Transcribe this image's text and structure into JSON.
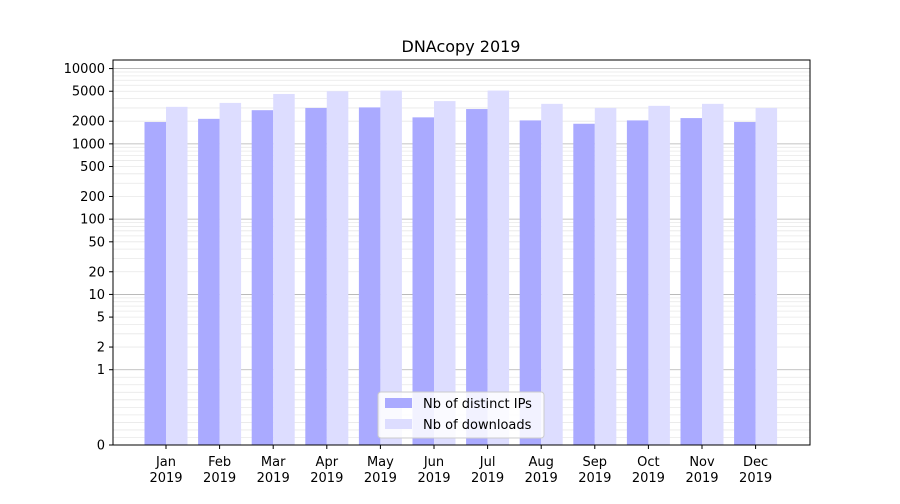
{
  "chart_data": {
    "type": "bar",
    "title": "DNAcopy 2019",
    "xlabel": "",
    "ylabel": "",
    "y_scale": "symlog",
    "ylim": [
      0,
      13000
    ],
    "y_ticks": [
      0,
      1,
      2,
      5,
      10,
      20,
      50,
      100,
      200,
      500,
      1000,
      2000,
      5000,
      10000
    ],
    "categories": [
      "Jan\n2019",
      "Feb\n2019",
      "Mar\n2019",
      "Apr\n2019",
      "May\n2019",
      "Jun\n2019",
      "Jul\n2019",
      "Aug\n2019",
      "Sep\n2019",
      "Oct\n2019",
      "Nov\n2019",
      "Dec\n2019"
    ],
    "series": [
      {
        "name": "Nb of distinct IPs",
        "color": "#aaaaff",
        "values": [
          1950,
          2150,
          2800,
          3000,
          3050,
          2250,
          2900,
          2050,
          1850,
          2050,
          2200,
          1950
        ]
      },
      {
        "name": "Nb of downloads",
        "color": "#ddddff",
        "values": [
          3100,
          3500,
          4600,
          5000,
          5100,
          3700,
          5100,
          3400,
          3000,
          3200,
          3400,
          3000
        ]
      }
    ],
    "grid": true,
    "legend_position": "bottom-center"
  }
}
